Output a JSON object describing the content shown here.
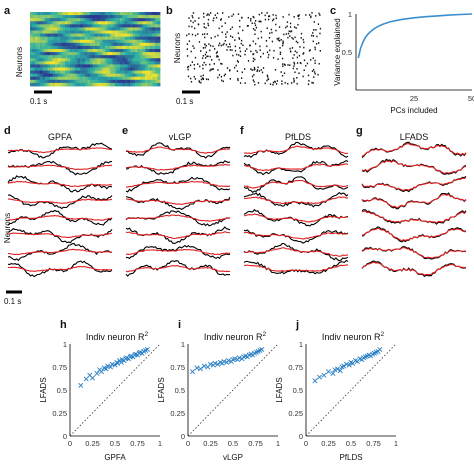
{
  "panel_letters": [
    "a",
    "b",
    "c",
    "d",
    "e",
    "f",
    "g",
    "h",
    "i",
    "j"
  ],
  "labels": {
    "neurons": "Neurons",
    "scale_bar": "0.1 s",
    "r2_title": "Indiv neuron R",
    "r2_sup": "2",
    "lfads": "LFADS"
  },
  "colors": {
    "data_trace": "#000000",
    "model_trace": "#e02020",
    "scatter": "#2a7fc4",
    "pca_line": "#3b8fd0",
    "heatmap_low": "#2b3990",
    "heatmap_mid": "#2bb0a6",
    "heatmap_high": "#f4e32c"
  },
  "chart_data": [
    {
      "panel": "a",
      "type": "heatmap",
      "ylabel": "Neurons",
      "scale_bar": "0.1 s"
    },
    {
      "panel": "b",
      "type": "scatter",
      "ylabel": "Neurons",
      "scale_bar": "0.1 s"
    },
    {
      "panel": "c",
      "type": "line",
      "xlabel": "PCs included",
      "ylabel": "Variance explained",
      "xlim": [
        0,
        50
      ],
      "ylim": [
        0,
        1
      ],
      "yticks": [
        "0.5",
        "1"
      ],
      "xticks": [
        "25",
        "50"
      ],
      "x": [
        1,
        2,
        3,
        4,
        5,
        6,
        8,
        10,
        12,
        15,
        20,
        25,
        30,
        35,
        40,
        45,
        50
      ],
      "y": [
        0.42,
        0.55,
        0.63,
        0.69,
        0.73,
        0.76,
        0.81,
        0.845,
        0.87,
        0.9,
        0.93,
        0.95,
        0.965,
        0.975,
        0.985,
        0.993,
        1.0
      ]
    },
    {
      "panel": "d",
      "type": "line",
      "title": "GPFA",
      "ylabel": "Neurons",
      "scale_bar": "0.1 s",
      "traces": 8,
      "series": [
        {
          "name": "data"
        },
        {
          "name": "model"
        }
      ]
    },
    {
      "panel": "e",
      "type": "line",
      "title": "vLGP",
      "traces": 8,
      "series": [
        {
          "name": "data"
        },
        {
          "name": "model"
        }
      ]
    },
    {
      "panel": "f",
      "type": "line",
      "title": "PfLDS",
      "traces": 8,
      "series": [
        {
          "name": "data"
        },
        {
          "name": "model"
        }
      ]
    },
    {
      "panel": "g",
      "type": "line",
      "title": "LFADS",
      "traces": 8,
      "series": [
        {
          "name": "data"
        },
        {
          "name": "model"
        }
      ]
    },
    {
      "panel": "h",
      "type": "scatter",
      "title": "Indiv neuron R",
      "title_sup": "2",
      "xlabel": "GPFA",
      "ylabel": "LFADS",
      "xlim": [
        0,
        1
      ],
      "ylim": [
        0,
        1
      ],
      "ticks": [
        "0",
        "0.25",
        "0.5",
        "0.75",
        "1"
      ],
      "x": [
        0.12,
        0.18,
        0.22,
        0.25,
        0.3,
        0.33,
        0.35,
        0.38,
        0.4,
        0.42,
        0.45,
        0.47,
        0.5,
        0.52,
        0.53,
        0.55,
        0.57,
        0.58,
        0.6,
        0.62,
        0.63,
        0.65,
        0.67,
        0.68,
        0.7,
        0.72,
        0.73,
        0.75,
        0.77,
        0.78,
        0.8,
        0.82,
        0.84,
        0.86
      ],
      "y": [
        0.55,
        0.62,
        0.66,
        0.63,
        0.68,
        0.72,
        0.7,
        0.74,
        0.73,
        0.76,
        0.75,
        0.78,
        0.77,
        0.8,
        0.79,
        0.82,
        0.8,
        0.83,
        0.82,
        0.84,
        0.85,
        0.84,
        0.86,
        0.87,
        0.86,
        0.88,
        0.89,
        0.88,
        0.9,
        0.91,
        0.9,
        0.92,
        0.93,
        0.94
      ]
    },
    {
      "panel": "i",
      "type": "scatter",
      "title": "Indiv neuron R",
      "title_sup": "2",
      "xlabel": "vLGP",
      "ylabel": "LFADS",
      "xlim": [
        0,
        1
      ],
      "ylim": [
        0,
        1
      ],
      "ticks": [
        "0",
        "0.25",
        "0.5",
        "0.75",
        "1"
      ],
      "x": [
        0.05,
        0.1,
        0.14,
        0.18,
        0.22,
        0.25,
        0.28,
        0.3,
        0.33,
        0.36,
        0.38,
        0.4,
        0.43,
        0.45,
        0.48,
        0.5,
        0.52,
        0.55,
        0.57,
        0.6,
        0.62,
        0.64,
        0.66,
        0.68,
        0.7,
        0.72,
        0.74,
        0.76,
        0.78,
        0.8,
        0.82
      ],
      "y": [
        0.7,
        0.74,
        0.73,
        0.76,
        0.75,
        0.78,
        0.77,
        0.79,
        0.78,
        0.8,
        0.79,
        0.81,
        0.8,
        0.82,
        0.81,
        0.83,
        0.84,
        0.83,
        0.85,
        0.84,
        0.86,
        0.87,
        0.86,
        0.88,
        0.89,
        0.88,
        0.9,
        0.91,
        0.92,
        0.93,
        0.94
      ]
    },
    {
      "panel": "j",
      "type": "scatter",
      "title": "Indiv neuron R",
      "title_sup": "2",
      "xlabel": "PfLDS",
      "ylabel": "LFADS",
      "xlim": [
        0,
        1
      ],
      "ylim": [
        0,
        1
      ],
      "ticks": [
        "0",
        "0.25",
        "0.5",
        "0.75",
        "1"
      ],
      "x": [
        0.1,
        0.15,
        0.2,
        0.25,
        0.3,
        0.32,
        0.35,
        0.38,
        0.4,
        0.42,
        0.45,
        0.48,
        0.5,
        0.52,
        0.55,
        0.57,
        0.6,
        0.62,
        0.64,
        0.66,
        0.68,
        0.7,
        0.72,
        0.74,
        0.76,
        0.78,
        0.8,
        0.82
      ],
      "y": [
        0.6,
        0.64,
        0.66,
        0.7,
        0.68,
        0.72,
        0.73,
        0.71,
        0.75,
        0.76,
        0.78,
        0.77,
        0.8,
        0.79,
        0.82,
        0.81,
        0.84,
        0.83,
        0.85,
        0.86,
        0.87,
        0.88,
        0.87,
        0.89,
        0.9,
        0.91,
        0.92,
        0.94
      ]
    }
  ]
}
